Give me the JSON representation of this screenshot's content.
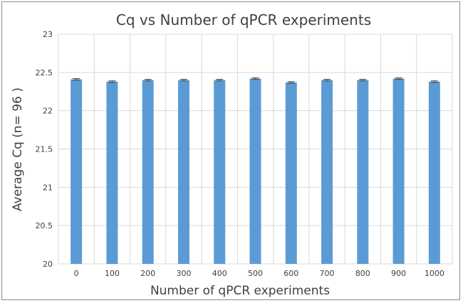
{
  "chart_data": {
    "type": "bar",
    "title": "Cq vs Number of qPCR experiments",
    "xlabel": "Number of qPCR experiments",
    "ylabel": "Average Cq (n= 96 )",
    "categories": [
      "0",
      "100",
      "200",
      "300",
      "400",
      "500",
      "600",
      "700",
      "800",
      "900",
      "1000"
    ],
    "values": [
      22.41,
      22.38,
      22.4,
      22.4,
      22.4,
      22.42,
      22.37,
      22.4,
      22.4,
      22.42,
      22.38
    ],
    "error": [
      0.01,
      0.01,
      0.01,
      0.01,
      0.01,
      0.01,
      0.01,
      0.01,
      0.01,
      0.01,
      0.01
    ],
    "ylim": [
      20,
      23
    ],
    "yticks": [
      "20",
      "20.5",
      "21",
      "21.5",
      "22",
      "22.5",
      "23"
    ],
    "grid": true,
    "bar_color": "#5b9bd5",
    "grid_color": "#d9d9d9"
  }
}
